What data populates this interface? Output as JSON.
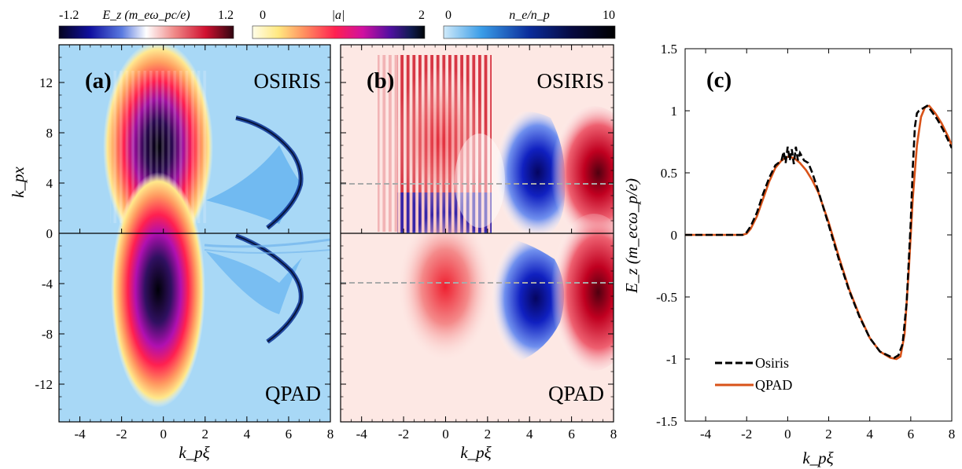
{
  "figure": {
    "colorbars": [
      {
        "min_label": "-1.2",
        "title": "E_z (m_eω_pc/e)",
        "max_label": "1.2",
        "colormap": "blue-white-red"
      },
      {
        "min_label": "0",
        "title": "|a|",
        "max_label": "2",
        "colormap": "yellow-red-purple-black"
      },
      {
        "min_label": "0",
        "title": "n_e/n_p",
        "max_label": "10",
        "colormap": "lightblue-navy-black"
      }
    ],
    "panel_a": {
      "tag": "(a)",
      "top_code": "OSIRIS",
      "bottom_code": "QPAD"
    },
    "panel_b": {
      "tag": "(b)",
      "top_code": "OSIRIS",
      "bottom_code": "QPAD"
    },
    "panel_c": {
      "tag": "(c)"
    },
    "xlabel": "k_pξ",
    "ylabel_a": "k_px",
    "ylabel_c": "E_z  (m_ecω_p/e)",
    "colors": {
      "osiris": "#000000",
      "qpad": "#D95319",
      "ref_line": "#aaaaaa"
    }
  },
  "chart_data": [
    {
      "type": "heatmap",
      "panel": "(a)",
      "fields": [
        "|a| (laser envelope)",
        "n_e/n_p (plasma density)"
      ],
      "xlim": [
        -5,
        8
      ],
      "ylim": [
        -15,
        15
      ],
      "x_ticks": [
        "-4",
        "-2",
        "0",
        "2",
        "4",
        "6",
        "8"
      ],
      "y_ticks": [
        "12",
        "8",
        "4",
        "0",
        "-4",
        "-8",
        "-12"
      ],
      "features": {
        "laser_center": [
          0,
          4
        ],
        "laser_peak_a": 2,
        "density_spike_xi": 6.2
      }
    },
    {
      "type": "heatmap",
      "panel": "(b)",
      "field": "E_z",
      "xlim": [
        -5,
        8
      ],
      "ylim": [
        -15,
        15
      ],
      "x_ticks": [
        "-4",
        "-2",
        "0",
        "2",
        "4",
        "6",
        "8"
      ],
      "reference_line_y": [
        4,
        -4
      ]
    },
    {
      "type": "line",
      "panel": "(c)",
      "xlim": [
        -5,
        8
      ],
      "ylim": [
        -1.5,
        1.5
      ],
      "x_ticks": [
        "-4",
        "-2",
        "0",
        "2",
        "4",
        "6",
        "8"
      ],
      "y_ticks": [
        "1.5",
        "1",
        "0.5",
        "0",
        "-0.5",
        "-1",
        "-1.5"
      ],
      "legend_position": "bottom-left",
      "series": [
        {
          "name": "Osiris",
          "style": "dashed",
          "x": [
            -5,
            -2.4,
            -2.2,
            -2.0,
            -1.8,
            -1.5,
            -1.2,
            -0.9,
            -0.6,
            -0.3,
            -0.2,
            -0.1,
            0.0,
            0.1,
            0.2,
            0.3,
            0.4,
            0.5,
            0.6,
            0.8,
            1.0,
            1.2,
            1.5,
            2.0,
            2.5,
            3.0,
            3.5,
            4.0,
            4.5,
            5.0,
            5.2,
            5.4,
            5.6,
            5.8,
            6.0,
            6.1,
            6.2,
            6.3,
            6.4,
            6.6,
            6.8,
            7.0,
            7.3,
            7.6,
            8.0
          ],
          "y": [
            0.0,
            0.0,
            0.0,
            0.02,
            0.07,
            0.18,
            0.33,
            0.46,
            0.56,
            0.6,
            0.67,
            0.58,
            0.71,
            0.6,
            0.69,
            0.57,
            0.71,
            0.6,
            0.66,
            0.6,
            0.58,
            0.5,
            0.35,
            0.08,
            -0.2,
            -0.45,
            -0.66,
            -0.83,
            -0.94,
            -0.98,
            -0.99,
            -0.97,
            -0.88,
            -0.55,
            0.1,
            0.55,
            0.87,
            0.98,
            1.0,
            1.02,
            1.04,
            1.0,
            0.93,
            0.84,
            0.7
          ]
        },
        {
          "name": "QPAD",
          "style": "solid",
          "x": [
            -5,
            -2.2,
            -2.0,
            -1.8,
            -1.5,
            -1.2,
            -0.9,
            -0.6,
            -0.3,
            0.0,
            0.3,
            0.6,
            0.9,
            1.2,
            1.5,
            2.0,
            2.5,
            3.0,
            3.5,
            4.0,
            4.5,
            5.0,
            5.3,
            5.5,
            5.7,
            5.9,
            6.1,
            6.3,
            6.5,
            6.7,
            6.9,
            7.2,
            7.5,
            7.8,
            8.0
          ],
          "y": [
            0.0,
            0.0,
            0.01,
            0.05,
            0.15,
            0.29,
            0.43,
            0.54,
            0.6,
            0.63,
            0.62,
            0.58,
            0.52,
            0.44,
            0.34,
            0.1,
            -0.18,
            -0.44,
            -0.65,
            -0.83,
            -0.94,
            -0.99,
            -1.0,
            -0.98,
            -0.8,
            -0.3,
            0.3,
            0.72,
            0.95,
            1.03,
            1.04,
            0.98,
            0.9,
            0.8,
            0.72
          ]
        }
      ]
    }
  ]
}
